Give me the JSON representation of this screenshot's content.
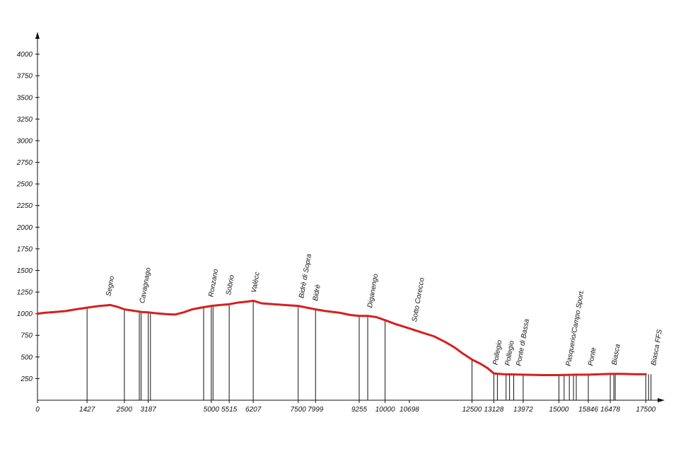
{
  "chart_data": {
    "type": "area",
    "title": "",
    "xlabel": "",
    "ylabel": "",
    "xlim": [
      0,
      17900
    ],
    "ylim": [
      0,
      4250
    ],
    "y_ticks": [
      250,
      500,
      750,
      1000,
      1250,
      1500,
      1750,
      2000,
      2250,
      2500,
      2750,
      3000,
      3250,
      3500,
      3750,
      4000
    ],
    "x_tick_labels": [
      {
        "x": 0,
        "label": "0"
      },
      {
        "x": 1427,
        "label": "1427"
      },
      {
        "x": 2500,
        "label": "2500"
      },
      {
        "x": 3187,
        "label": "3187"
      },
      {
        "x": 5000,
        "label": "5000"
      },
      {
        "x": 5515,
        "label": "5515"
      },
      {
        "x": 6207,
        "label": "6207"
      },
      {
        "x": 7500,
        "label": "7500"
      },
      {
        "x": 7999,
        "label": "7999"
      },
      {
        "x": 9255,
        "label": "9255"
      },
      {
        "x": 10000,
        "label": "10000"
      },
      {
        "x": 10698,
        "label": "10698"
      },
      {
        "x": 12500,
        "label": "12500"
      },
      {
        "x": 13128,
        "label": "13128"
      },
      {
        "x": 13972,
        "label": "13972"
      },
      {
        "x": 15000,
        "label": "15000"
      },
      {
        "x": 15846,
        "label": "15846"
      },
      {
        "x": 16478,
        "label": "16478"
      },
      {
        "x": 17500,
        "label": "17500"
      }
    ],
    "places": [
      {
        "name": "Segno",
        "x": 2100
      },
      {
        "name": "Cavagnago",
        "x": 3070
      },
      {
        "name": "Ronzano",
        "x": 5050
      },
      {
        "name": "Sobrio",
        "x": 5550
      },
      {
        "name": "Valècc",
        "x": 6280
      },
      {
        "name": "Bidrè di Sopra",
        "x": 7650
      },
      {
        "name": "Bidrè",
        "x": 8050
      },
      {
        "name": "Diganengo",
        "x": 9620
      },
      {
        "name": "Sotto Corecco",
        "x": 10900
      },
      {
        "name": "Pollegio",
        "x": 13230
      },
      {
        "name": "Pollegio",
        "x": 13580
      },
      {
        "name": "Ponte di Bassa",
        "x": 13900
      },
      {
        "name": "Pasquerio/Campo Sport.",
        "x": 15330
      },
      {
        "name": "Ponte",
        "x": 15970
      },
      {
        "name": "Biasca",
        "x": 16650
      },
      {
        "name": "Biasca FFS",
        "x": 17780
      }
    ],
    "marker_x": [
      1427,
      2500,
      2930,
      2980,
      3187,
      3250,
      4780,
      5000,
      5050,
      5515,
      6207,
      7500,
      7999,
      9255,
      9500,
      10000,
      12500,
      13128,
      13230,
      13480,
      13580,
      13700,
      13972,
      15000,
      15150,
      15300,
      15420,
      15500,
      15846,
      16478,
      16580,
      16620,
      17500,
      17580,
      17650
    ],
    "series": [
      {
        "color": "#d42020",
        "x": [
          0,
          200,
          500,
          800,
          1100,
          1427,
          1600,
          1800,
          2100,
          2300,
          2500,
          2750,
          3000,
          3187,
          3400,
          3700,
          3950,
          4200,
          4450,
          4700,
          5000,
          5250,
          5515,
          5800,
          6050,
          6207,
          6450,
          6800,
          7100,
          7500,
          7750,
          7999,
          8300,
          8700,
          9000,
          9255,
          9500,
          9750,
          10000,
          10300,
          10698,
          11000,
          11400,
          11700,
          12000,
          12200,
          12500,
          12750,
          12950,
          13128,
          13400,
          13972,
          14500,
          15000,
          15500,
          15846,
          16200,
          16478,
          16800,
          17200,
          17500
        ],
        "y": [
          1000,
          1010,
          1020,
          1030,
          1050,
          1070,
          1080,
          1090,
          1100,
          1080,
          1050,
          1035,
          1020,
          1015,
          1005,
          995,
          990,
          1015,
          1050,
          1070,
          1090,
          1100,
          1110,
          1130,
          1140,
          1150,
          1120,
          1110,
          1100,
          1090,
          1070,
          1050,
          1030,
          1010,
          985,
          975,
          975,
          960,
          925,
          880,
          830,
          790,
          740,
          680,
          610,
          550,
          470,
          420,
          370,
          310,
          300,
          295,
          290,
          290,
          295,
          295,
          300,
          305,
          305,
          300,
          300
        ]
      }
    ],
    "grid": false,
    "legend": "none"
  }
}
